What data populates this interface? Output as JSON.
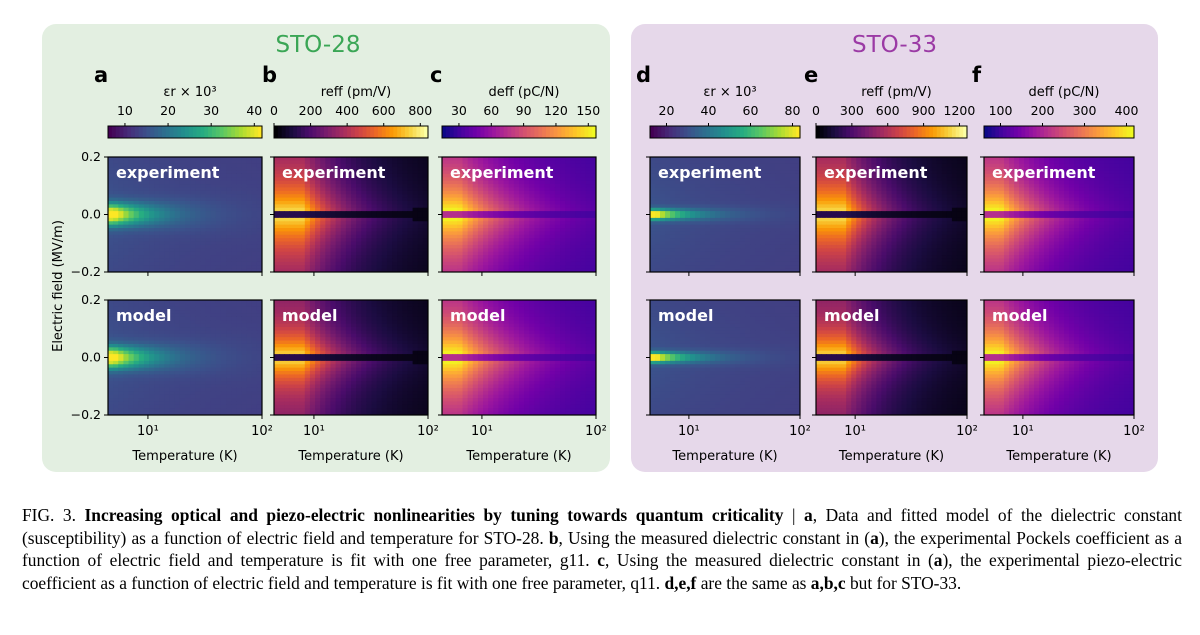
{
  "panels_group": [
    {
      "title": "STO-28",
      "title_color": "#3aa655",
      "bg": "#e3efe1"
    },
    {
      "title": "STO-33",
      "title_color": "#9b3aa5",
      "bg": "#e6d8ea"
    }
  ],
  "panels": [
    {
      "letter": "a",
      "cbar_label": "εr × 10³",
      "cmap": "viridis",
      "ticks": [
        "10",
        "20",
        "30",
        "40"
      ],
      "kind": "eps"
    },
    {
      "letter": "b",
      "cbar_label": "reff (pm/V)",
      "cmap": "inferno",
      "ticks": [
        "0",
        "200",
        "400",
        "600",
        "800"
      ],
      "kind": "reff"
    },
    {
      "letter": "c",
      "cbar_label": "deff (pC/N)",
      "cmap": "plasma",
      "ticks": [
        "30",
        "60",
        "90",
        "120",
        "150"
      ],
      "kind": "deff"
    },
    {
      "letter": "d",
      "cbar_label": "εr × 10³",
      "cmap": "viridis",
      "ticks": [
        "20",
        "40",
        "60",
        "80"
      ],
      "kind": "eps"
    },
    {
      "letter": "e",
      "cbar_label": "reff (pm/V)",
      "cmap": "inferno",
      "ticks": [
        "0",
        "300",
        "600",
        "900",
        "1200"
      ],
      "kind": "reff"
    },
    {
      "letter": "f",
      "cbar_label": "deff (pC/N)",
      "cmap": "plasma",
      "ticks": [
        "100",
        "200",
        "300",
        "400"
      ],
      "kind": "deff"
    }
  ],
  "row_labels": [
    "experiment",
    "model"
  ],
  "y_axis": {
    "label": "Electric field (MV/m)",
    "ticks": [
      "0.2",
      "0.0",
      "−0.2"
    ]
  },
  "x_axis": {
    "label": "Temperature (K)",
    "ticks": [
      "10¹",
      "10²"
    ]
  },
  "caption": {
    "fig_label": "FIG. 3.",
    "title": "Increasing optical and piezo-electric nonlinearities by tuning towards quantum criticality",
    "sep": " | ",
    "a_letter": "a",
    "a_text": ", Data and fitted model of the dielectric constant (susceptibility) as a function of electric field and temperature for STO-28. ",
    "b_letter": "b",
    "b_text1": ", Using the measured dielectric constant in (",
    "b_ref": "a",
    "b_text2": "), the experimental Pockels coefficient as a function of electric field and temperature is fit with one free parameter, g11. ",
    "c_letter": "c",
    "c_text1": ", Using the measured dielectric constant in (",
    "c_ref": "a",
    "c_text2": "), the experimental piezo-electric coefficient as a function of electric field and temperature is fit with one free parameter, q11. ",
    "def_letters": "d,e,f",
    "def_text": " are the same as ",
    "abc_letters": "a,b,c",
    "end_text": " but for STO-33."
  }
}
